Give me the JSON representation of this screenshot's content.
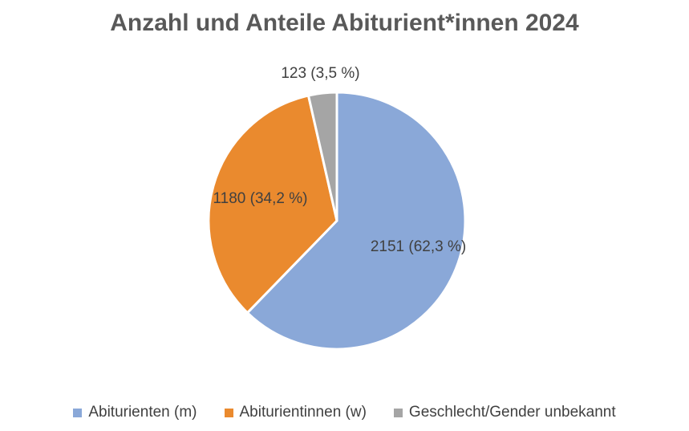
{
  "chart_data": {
    "type": "pie",
    "title": "Anzahl und Anteile Abiturient*innen 2024",
    "start_angle_deg": 0,
    "direction": "clockwise",
    "legend_position": "bottom",
    "slices": [
      {
        "label": "Abiturienten (m)",
        "value": 2151,
        "percent": 62.3,
        "data_label": "2151 (62,3 %)",
        "color": "#8AA8D8"
      },
      {
        "label": "Abiturientinnen (w)",
        "value": 1180,
        "percent": 34.2,
        "data_label": "1180 (34,2 %)",
        "color": "#EA8A2E"
      },
      {
        "label": "Geschlecht/Gender unbekannt",
        "value": 123,
        "percent": 3.5,
        "data_label": "123 (3,5 %)",
        "color": "#A5A5A5"
      }
    ]
  }
}
